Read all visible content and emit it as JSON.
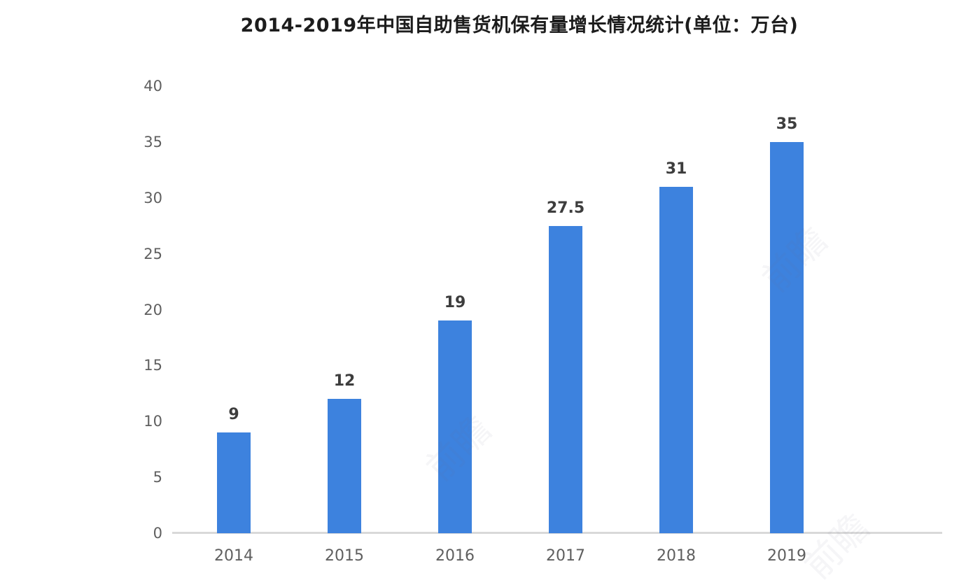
{
  "page": {
    "background": "#ffffff"
  },
  "chart_data": {
    "type": "bar",
    "title": "2014-2019年中国自助售货机保有量增长情况统计(单位：万台)",
    "categories": [
      "2014",
      "2015",
      "2016",
      "2017",
      "2018",
      "2019"
    ],
    "values": [
      9,
      12,
      19,
      27.5,
      31,
      35
    ],
    "data_labels": [
      "9",
      "12",
      "19",
      "27.5",
      "31",
      "35"
    ],
    "xlabel": "",
    "ylabel": "",
    "ylim": [
      0,
      40
    ],
    "y_ticks": [
      0,
      5,
      10,
      15,
      20,
      25,
      30,
      35,
      40
    ],
    "grid": false,
    "legend": null,
    "bar_color": "#3d82de",
    "axis_line_color": "#d9d9d9",
    "tick_label_color": "#5f5f5f",
    "data_label_color": "#3d3d3d",
    "title_color": "#1c1c1c"
  },
  "watermark": {
    "text": "前瞻"
  }
}
